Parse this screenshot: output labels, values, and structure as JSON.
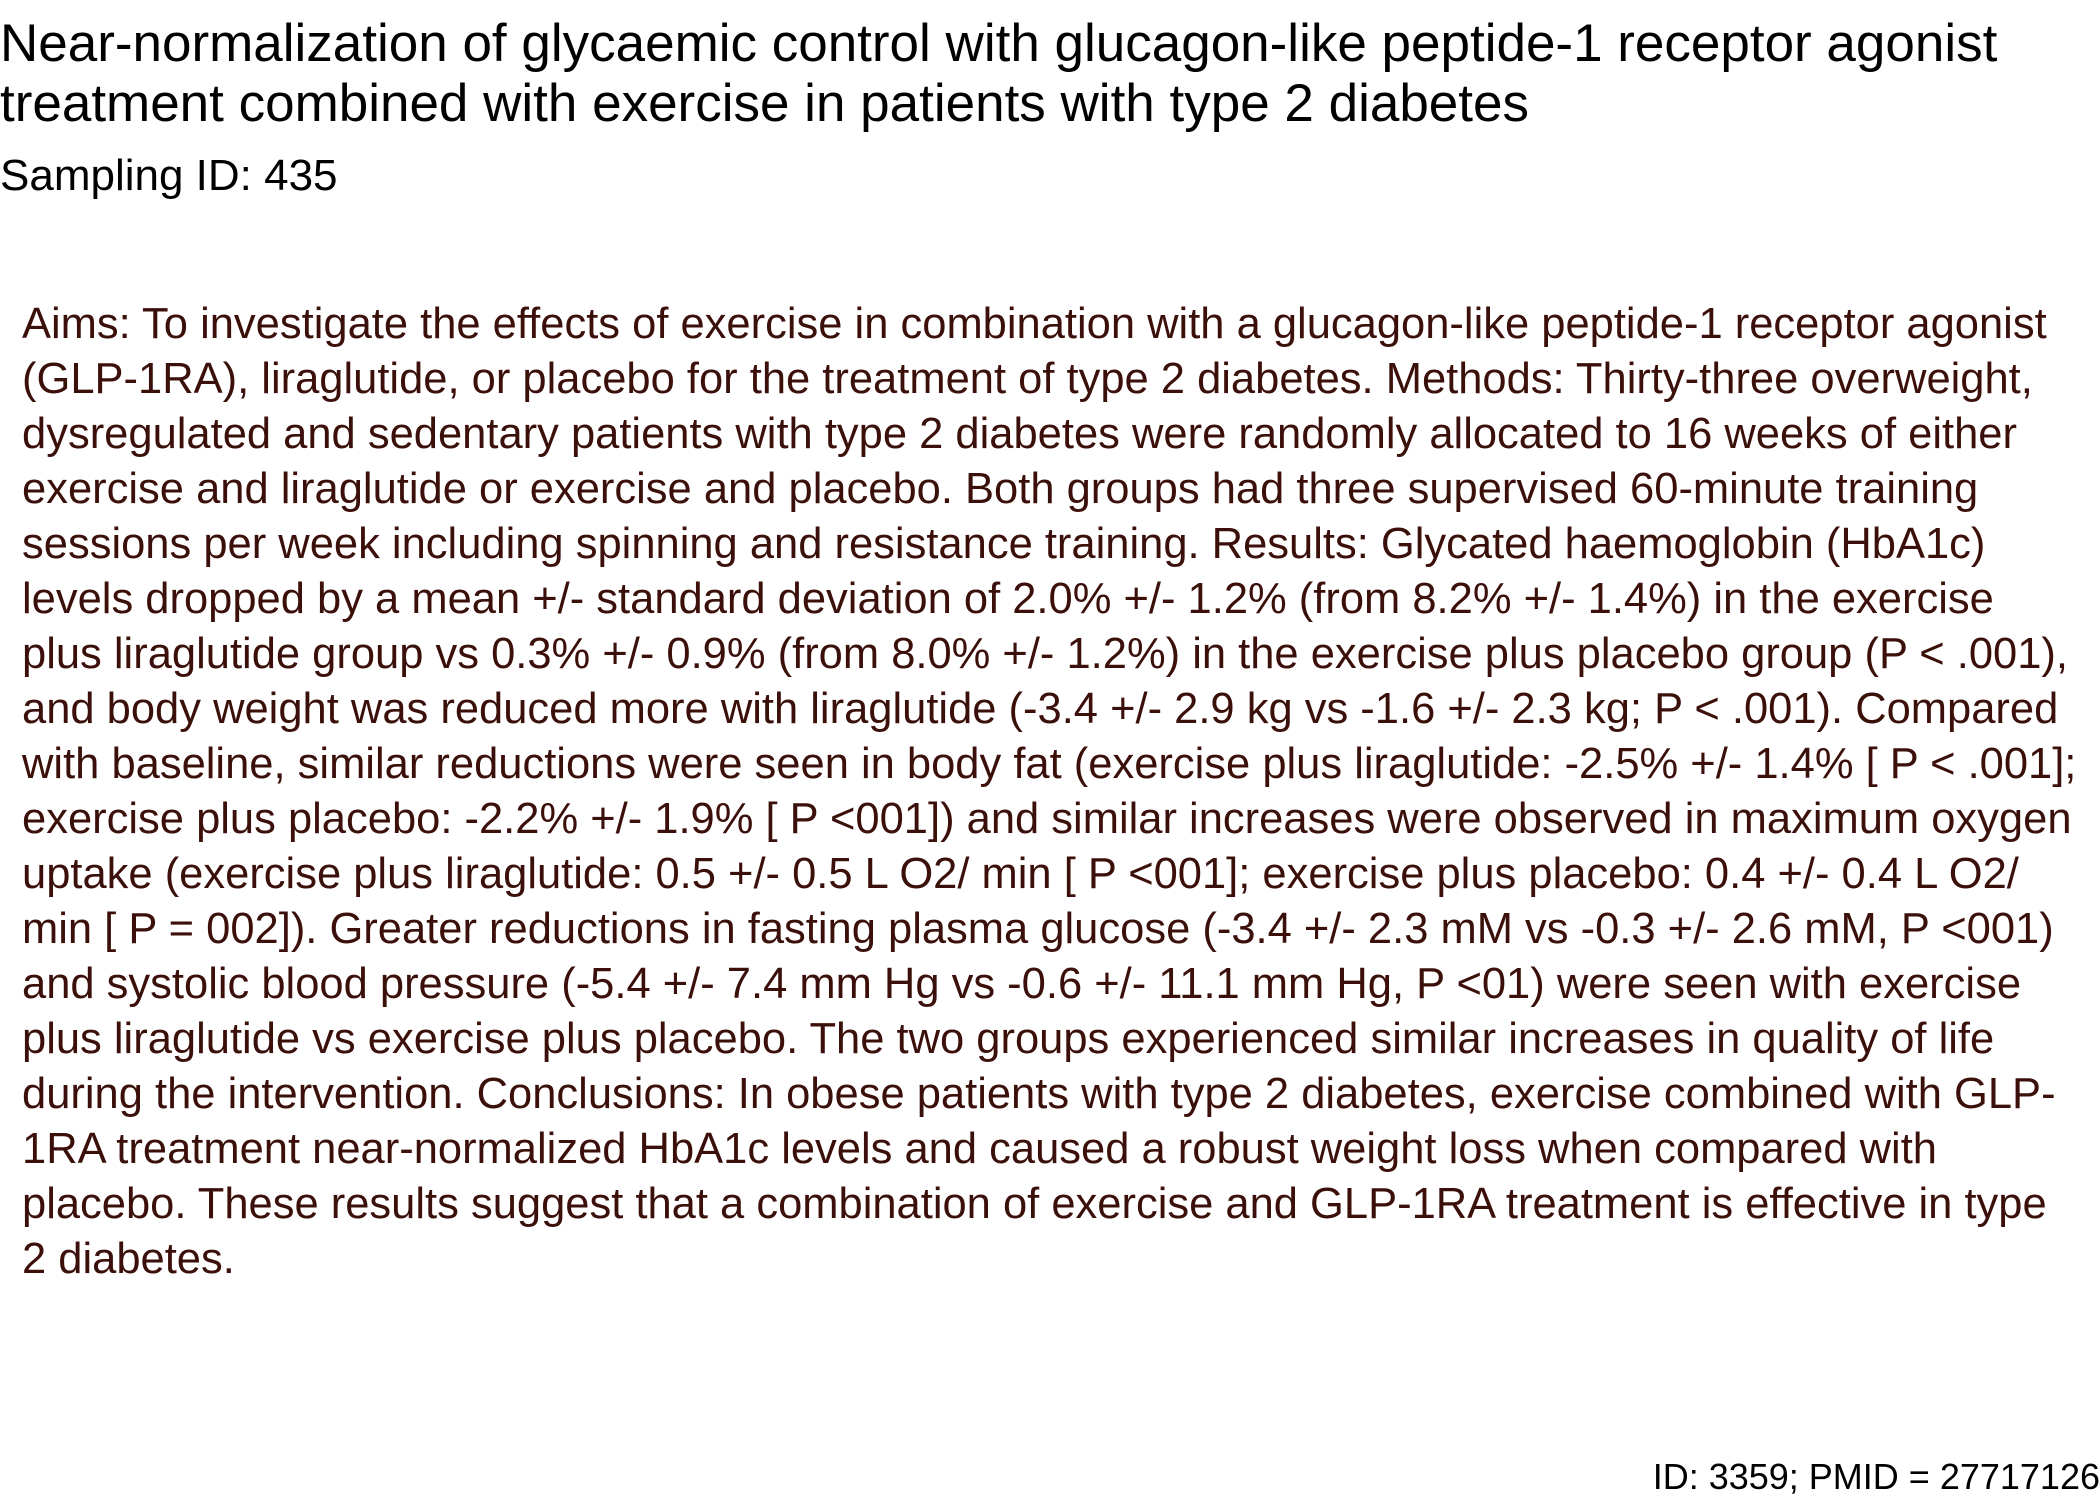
{
  "document": {
    "title": "Near-normalization of glycaemic control with glucagon-like peptide-1 receptor agonist treatment combined with exercise in patients with type 2 diabetes",
    "sampling_id": "Sampling ID: 435",
    "abstract": "Aims: To investigate the effects of exercise in combination with a glucagon-like peptide-1 receptor agonist (GLP-1RA), liraglutide, or placebo for the treatment of type 2 diabetes. Methods: Thirty-three overweight, dysregulated and sedentary patients with type 2 diabetes were randomly allocated to 16 weeks of either exercise and liraglutide or exercise and placebo. Both groups had three supervised 60-minute training sessions per week including spinning and resistance training. Results: Glycated haemoglobin (HbA1c) levels dropped by a mean +/- standard deviation of 2.0% +/- 1.2% (from 8.2% +/- 1.4%) in the exercise plus liraglutide group vs 0.3% +/- 0.9% (from 8.0% +/- 1.2%) in the exercise plus placebo group (P < .001), and body weight was reduced more with liraglutide (-3.4 +/- 2.9 kg vs -1.6 +/- 2.3 kg; P < .001). Compared with baseline, similar reductions were seen in body fat (exercise plus liraglutide: -2.5% +/- 1.4% [ P < .001]; exercise plus placebo: -2.2% +/- 1.9% [ P <001]) and similar increases were observed in maximum oxygen uptake (exercise plus liraglutide: 0.5 +/- 0.5 L O2/ min [ P <001]; exercise plus placebo: 0.4 +/- 0.4 L O2/ min [ P = 002]). Greater reductions in fasting plasma glucose (-3.4 +/- 2.3 mM vs -0.3 +/- 2.6 mM, P <001) and systolic blood pressure (-5.4 +/- 7.4 mm Hg vs -0.6 +/- 11.1 mm Hg, P <01) were seen with exercise plus liraglutide vs exercise plus placebo. The two groups experienced similar increases in quality of life during the intervention. Conclusions: In obese patients with type 2 diabetes, exercise combined with GLP-1RA treatment near-normalized HbA1c levels and caused a robust weight loss when compared with placebo. These results suggest that a combination of exercise and GLP-1RA treatment is effective in type 2 diabetes.",
    "footer_id": "ID: 3359; PMID = 27717126"
  },
  "colors": {
    "title_text": "#000000",
    "abstract_text": "#3b0f0a",
    "background": "#ffffff"
  }
}
